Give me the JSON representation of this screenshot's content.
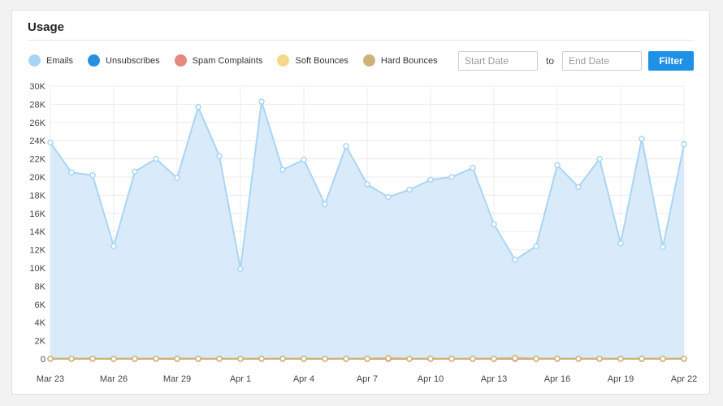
{
  "card": {
    "title": "Usage"
  },
  "filter": {
    "start_placeholder": "Start Date",
    "to_label": "to",
    "end_placeholder": "End Date",
    "button_label": "Filter"
  },
  "legend": [
    {
      "name": "Emails",
      "color": "#a9d5f4"
    },
    {
      "name": "Unsubscribes",
      "color": "#2a8fe0"
    },
    {
      "name": "Spam Complaints",
      "color": "#e8877c"
    },
    {
      "name": "Soft Bounces",
      "color": "#f3d88c"
    },
    {
      "name": "Hard Bounces",
      "color": "#cdb27a"
    }
  ],
  "chart_data": {
    "type": "area",
    "ylim": [
      0,
      30000
    ],
    "y_ticks": [
      "0",
      "2K",
      "4K",
      "6K",
      "8K",
      "10K",
      "12K",
      "14K",
      "16K",
      "18K",
      "20K",
      "22K",
      "24K",
      "26K",
      "28K",
      "30K"
    ],
    "x_tick_labels": [
      "Mar 23",
      "Mar 26",
      "Mar 29",
      "Apr 1",
      "Apr 4",
      "Apr 7",
      "Apr 10",
      "Apr 13",
      "Apr 16",
      "Apr 19",
      "Apr 22"
    ],
    "grid": true,
    "x": [
      "Mar 23",
      "Mar 24",
      "Mar 25",
      "Mar 26",
      "Mar 27",
      "Mar 28",
      "Mar 29",
      "Mar 30",
      "Mar 31",
      "Apr 1",
      "Apr 2",
      "Apr 3",
      "Apr 4",
      "Apr 5",
      "Apr 6",
      "Apr 7",
      "Apr 8",
      "Apr 9",
      "Apr 10",
      "Apr 11",
      "Apr 12",
      "Apr 13",
      "Apr 14",
      "Apr 15",
      "Apr 16",
      "Apr 17",
      "Apr 18",
      "Apr 19",
      "Apr 20",
      "Apr 21",
      "Apr 22"
    ],
    "series": [
      {
        "name": "Emails",
        "color": "#a9d5f4",
        "fill": "#d9ebfb",
        "values": [
          23800,
          20500,
          20200,
          12400,
          20600,
          22000,
          19900,
          27700,
          22300,
          9900,
          28300,
          20800,
          21900,
          17000,
          23400,
          19200,
          17800,
          18600,
          19700,
          20000,
          21000,
          14800,
          10900,
          12400,
          21300,
          18900,
          22000,
          12700,
          24200,
          12300,
          23600
        ]
      },
      {
        "name": "Unsubscribes",
        "color": "#2a8fe0",
        "values": [
          20,
          15,
          18,
          10,
          15,
          25,
          15,
          12,
          10,
          8,
          12,
          10,
          12,
          8,
          10,
          15,
          12,
          10,
          12,
          10,
          12,
          15,
          20,
          10,
          12,
          10,
          12,
          8,
          12,
          10,
          12
        ]
      },
      {
        "name": "Spam Complaints",
        "color": "#e8877c",
        "values": [
          5,
          4,
          5,
          3,
          5,
          6,
          4,
          5,
          4,
          3,
          5,
          4,
          5,
          3,
          4,
          5,
          4,
          4,
          5,
          4,
          4,
          5,
          6,
          4,
          5,
          4,
          5,
          3,
          5,
          4,
          5
        ]
      },
      {
        "name": "Soft Bounces",
        "color": "#f3d88c",
        "values": [
          40,
          30,
          35,
          20,
          35,
          60,
          30,
          40,
          30,
          20,
          40,
          30,
          40,
          25,
          30,
          40,
          120,
          30,
          40,
          30,
          35,
          40,
          150,
          30,
          40,
          30,
          40,
          25,
          40,
          30,
          40
        ]
      },
      {
        "name": "Hard Bounces",
        "color": "#cdb27a",
        "values": [
          20,
          15,
          18,
          10,
          18,
          30,
          15,
          20,
          15,
          10,
          20,
          15,
          20,
          12,
          15,
          20,
          60,
          15,
          20,
          15,
          18,
          20,
          80,
          15,
          20,
          15,
          20,
          12,
          20,
          15,
          20
        ]
      }
    ]
  }
}
